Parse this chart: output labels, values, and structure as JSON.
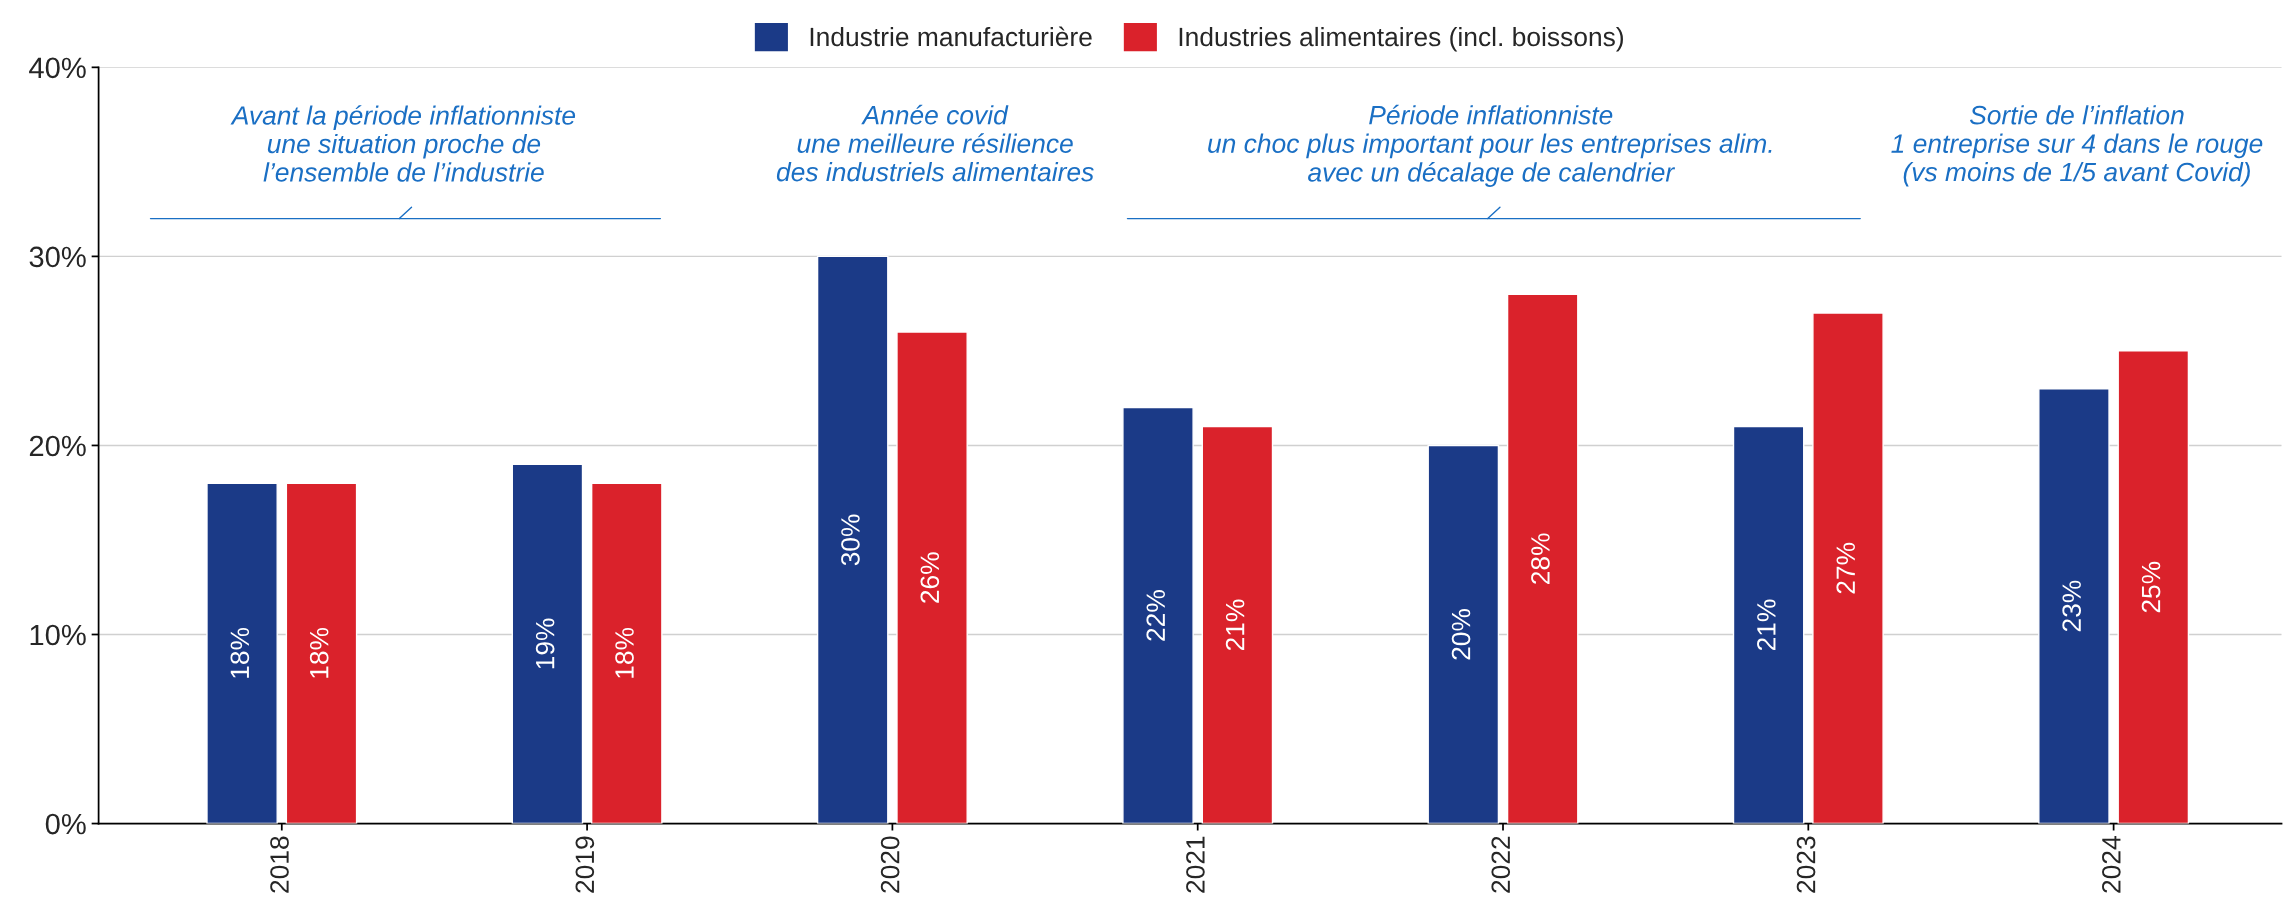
{
  "chart_data": {
    "type": "bar",
    "categories": [
      "2018",
      "2019",
      "2020",
      "2021",
      "2022",
      "2023",
      "2024"
    ],
    "series": [
      {
        "name": "Industrie manufacturière",
        "color": "#1b3a87",
        "values": [
          18,
          19,
          30,
          22,
          20,
          21,
          23
        ],
        "value_labels": [
          "18%",
          "19%",
          "30%",
          "22%",
          "20%",
          "21%",
          "23%"
        ]
      },
      {
        "name": "Industries alimentaires (incl. boissons)",
        "color": "#da222b",
        "values": [
          18,
          18,
          26,
          21,
          28,
          27,
          25
        ],
        "value_labels": [
          "18%",
          "18%",
          "26%",
          "21%",
          "28%",
          "27%",
          "25%"
        ]
      }
    ],
    "ylim": [
      0,
      40
    ],
    "yticks": [
      {
        "value": 0,
        "label": "0%"
      },
      {
        "value": 10,
        "label": "10%"
      },
      {
        "value": 20,
        "label": "20%"
      },
      {
        "value": 30,
        "label": "30%"
      },
      {
        "value": 40,
        "label": "40%"
      }
    ],
    "grid": "y",
    "legend": "top",
    "annotations": [
      "Avant la période inflationniste\nune situation proche de\nl’ensemble de l’industrie",
      "Année covid\nune meilleure résilience\ndes industriels alimentaires",
      "Période inflationniste\nun choc plus important pour les entreprises alim.\navec un décalage de calendrier",
      "Sortie de l’inflation\n1 entreprise sur 4 dans le rouge\n(vs moins de 1/5 avant Covid)"
    ]
  }
}
